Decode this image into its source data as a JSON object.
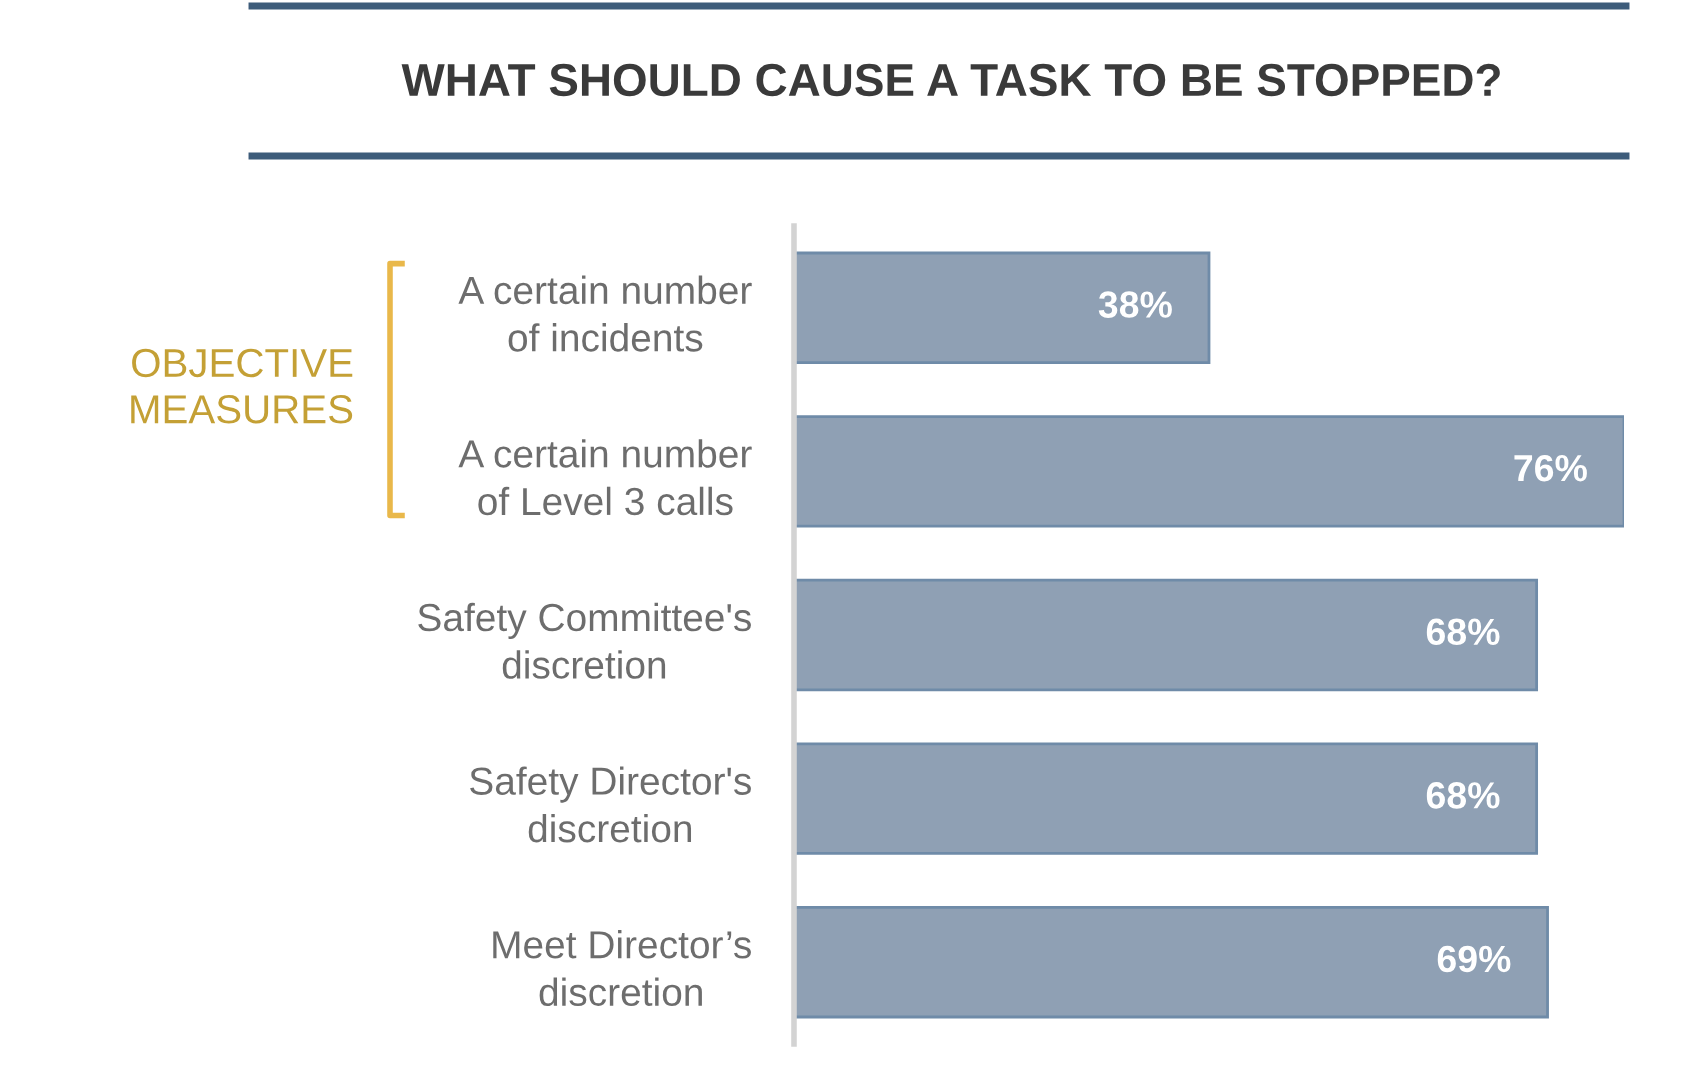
{
  "chart_data": {
    "type": "bar",
    "orientation": "horizontal",
    "title": "WHAT SHOULD CAUSE A TASK TO BE STOPPED?",
    "categories": [
      "A certain number of incidents",
      "A certain number of Level 3 calls",
      "Safety Committee's discretion",
      "Safety Director's discretion",
      "Meet Director’s discretion"
    ],
    "values": [
      38,
      76,
      68,
      68,
      69
    ],
    "value_labels": [
      "38%",
      "76%",
      "68%",
      "68%",
      "69%"
    ],
    "color": "#8fa0b4",
    "tick_labels": "y",
    "annotations": [
      "OBJECTIVE MEASURES"
    ]
  }
}
